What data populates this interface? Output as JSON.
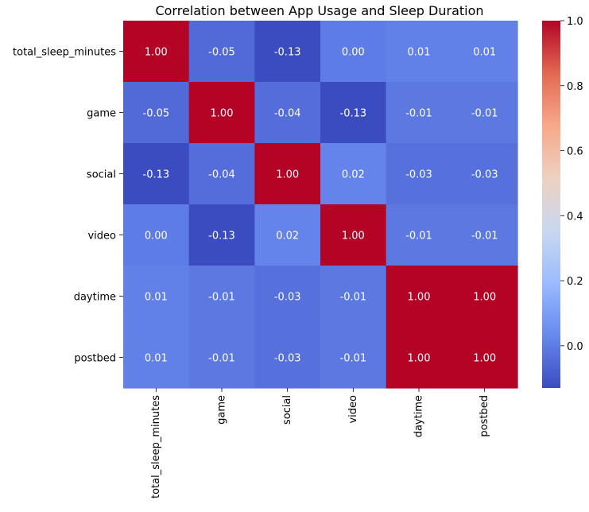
{
  "chart_data": {
    "type": "heatmap",
    "title": "Correlation between App Usage and Sleep Duration",
    "xlabel": "",
    "ylabel": "",
    "rows": [
      "total_sleep_minutes",
      "game",
      "social",
      "video",
      "daytime",
      "postbed"
    ],
    "columns": [
      "total_sleep_minutes",
      "game",
      "social",
      "video",
      "daytime",
      "postbed"
    ],
    "values": [
      [
        1.0,
        -0.05,
        -0.13,
        0.0,
        0.01,
        0.01
      ],
      [
        -0.05,
        1.0,
        -0.04,
        -0.13,
        -0.01,
        -0.01
      ],
      [
        -0.13,
        -0.04,
        1.0,
        0.02,
        -0.03,
        -0.03
      ],
      [
        0.0,
        -0.13,
        0.02,
        1.0,
        -0.01,
        -0.01
      ],
      [
        0.01,
        -0.01,
        -0.03,
        -0.01,
        1.0,
        1.0
      ],
      [
        0.01,
        -0.01,
        -0.03,
        -0.01,
        1.0,
        1.0
      ]
    ],
    "cell_labels": [
      [
        "1.00",
        "-0.05",
        "-0.13",
        "0.00",
        "0.01",
        "0.01"
      ],
      [
        "-0.05",
        "1.00",
        "-0.04",
        "-0.13",
        "-0.01",
        "-0.01"
      ],
      [
        "-0.13",
        "-0.04",
        "1.00",
        "0.02",
        "-0.03",
        "-0.03"
      ],
      [
        "0.00",
        "-0.13",
        "0.02",
        "1.00",
        "-0.01",
        "-0.01"
      ],
      [
        "0.01",
        "-0.01",
        "-0.03",
        "-0.01",
        "1.00",
        "1.00"
      ],
      [
        "0.01",
        "-0.01",
        "-0.03",
        "-0.01",
        "1.00",
        "1.00"
      ]
    ],
    "colormap": "coolwarm",
    "colormap_stops": [
      "#3b4cc0",
      "#6788ee",
      "#9abbff",
      "#c9d8ef",
      "#edd1c2",
      "#f7a889",
      "#e26952",
      "#b40426"
    ],
    "vmin": -0.13,
    "vmax": 1.0,
    "colorbar_ticks": [
      "0.0",
      "0.2",
      "0.4",
      "0.6",
      "0.8",
      "1.0"
    ],
    "colorbar_tick_values": [
      0.0,
      0.2,
      0.4,
      0.6,
      0.8,
      1.0
    ],
    "grid": false,
    "legend": "colorbar-right"
  }
}
